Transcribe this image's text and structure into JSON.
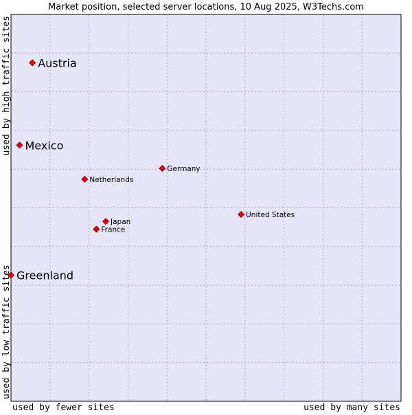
{
  "chart_data": {
    "type": "scatter",
    "title": "Market position, selected server locations, 10 Aug 2025, W3Techs.com",
    "xlabel_left": "used by fewer sites",
    "xlabel_right": "used by many sites",
    "ylabel_bottom": "used by low traffic sites",
    "ylabel_top": "used by high traffic sites",
    "xlim": [
      0,
      10
    ],
    "ylim": [
      0,
      10
    ],
    "grid": true,
    "colors": {
      "plot_background": "#e4e6f8",
      "grid": "#a7a9c7",
      "frame": "#000000",
      "marker": "#ee0000",
      "marker_edge": "#8b0000"
    },
    "points": [
      {
        "label": "Austria",
        "x": 0.55,
        "y": 8.75,
        "emphasis": true
      },
      {
        "label": "Mexico",
        "x": 0.22,
        "y": 6.62,
        "emphasis": true
      },
      {
        "label": "Greenland",
        "x": 0.0,
        "y": 3.26,
        "emphasis": true
      },
      {
        "label": "Germany",
        "x": 3.88,
        "y": 6.02,
        "emphasis": false
      },
      {
        "label": "Netherlands",
        "x": 1.89,
        "y": 5.74,
        "emphasis": false
      },
      {
        "label": "United States",
        "x": 5.9,
        "y": 4.83,
        "emphasis": false
      },
      {
        "label": "Japan",
        "x": 2.43,
        "y": 4.65,
        "emphasis": false
      },
      {
        "label": "France",
        "x": 2.19,
        "y": 4.45,
        "emphasis": false
      }
    ]
  }
}
